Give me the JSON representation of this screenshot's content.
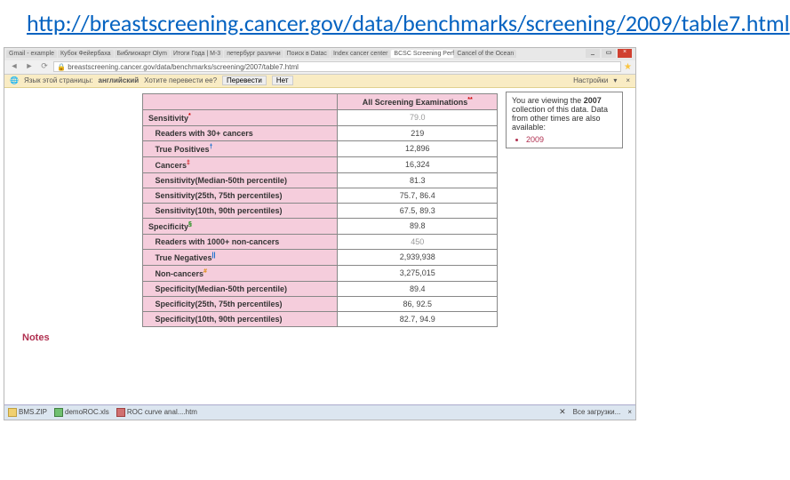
{
  "slide": {
    "title_url": "http://breastscreening.cancer.gov/data/benchmarks/screening/2009/table7.html"
  },
  "browser": {
    "tabs": [
      "Gmail - example",
      "Кубок Фейербаха",
      "Библиокарт Olym",
      "Итоги Года | M-3",
      "петербург различи",
      "Поиск в Datac",
      "Index cancer center",
      "BCSC Screening Perf",
      "Cancel of the Ocean"
    ],
    "active_tab_index": 7,
    "url": "breastscreening.cancer.gov/data/benchmarks/screening/2007/table7.html",
    "window_buttons": [
      "_",
      "▭",
      "×"
    ]
  },
  "translate_bar": {
    "lang_label": "Язык этой страницы:",
    "lang_value": "английский",
    "question": "Хотите перевести ее?",
    "btn_translate": "Перевести",
    "btn_no": "Нет",
    "settings": "Настройки"
  },
  "table": {
    "header_col": "All Screening Examinations",
    "header_sup": "**",
    "rows": [
      {
        "label": "Sensitivity",
        "sup": "*",
        "sup_class": "sup-red",
        "value": "79.0",
        "grey": true,
        "indent": 0
      },
      {
        "label": "Readers with 30+ cancers",
        "value": "219",
        "indent": 1
      },
      {
        "label": "True Positives",
        "sup": "†",
        "sup_class": "sup-blue",
        "value": "12,896",
        "indent": 1
      },
      {
        "label": "Cancers",
        "sup": "‡",
        "sup_class": "sup-red",
        "value": "16,324",
        "indent": 1
      },
      {
        "label": "Sensitivity(Median-50th percentile)",
        "value": "81.3",
        "indent": 1
      },
      {
        "label": "Sensitivity(25th, 75th percentiles)",
        "value": "75.7, 86.4",
        "indent": 1
      },
      {
        "label": "Sensitivity(10th, 90th percentiles)",
        "value": "67.5, 89.3",
        "indent": 1
      },
      {
        "label": "Specificity",
        "sup": "§",
        "sup_class": "sup-green",
        "value": "89.8",
        "indent": 0
      },
      {
        "label": "Readers with 1000+ non-cancers",
        "value": "450",
        "grey": true,
        "indent": 1
      },
      {
        "label": "True Negatives",
        "sup": "||",
        "sup_class": "sup-blue",
        "value": "2,939,938",
        "indent": 1
      },
      {
        "label": "Non-cancers",
        "sup": "#",
        "sup_class": "sup-orange",
        "value": "3,275,015",
        "indent": 1
      },
      {
        "label": "Specificity(Median-50th percentile)",
        "value": "89.4",
        "indent": 1
      },
      {
        "label": "Specificity(25th, 75th percentiles)",
        "value": "86, 92.5",
        "indent": 1
      },
      {
        "label": "Specificity(10th, 90th percentiles)",
        "value": "82.7, 94.9",
        "indent": 1
      }
    ],
    "notes_label": "Notes"
  },
  "sidebox": {
    "text_1": "You are viewing the ",
    "year_bold": "2007",
    "text_2": " collection of this data. Data from other times are also available:",
    "links": [
      "2009"
    ]
  },
  "taskbar": {
    "items": [
      "BMS.ZIP",
      "demoROC.xls",
      "ROC curve anal....htm"
    ],
    "all_downloads": "Все загрузки..."
  },
  "colors": {
    "pink_header": "#f5cddc",
    "link_blue": "#0563c1",
    "notes_red": "#b03050"
  }
}
